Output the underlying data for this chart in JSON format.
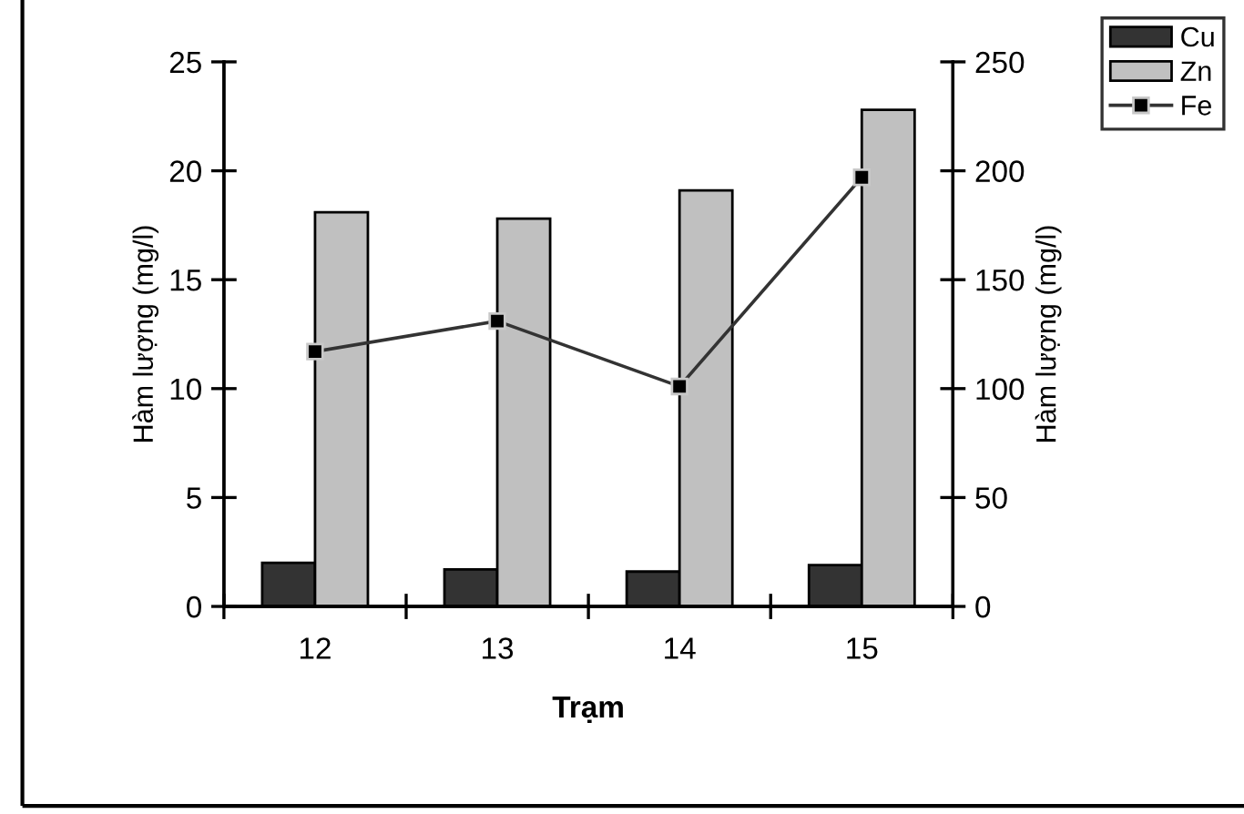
{
  "chart_data": {
    "type": "bar",
    "xlabel": "Trạm",
    "ylabel": "Hàm lượng (mg/l)",
    "y2label": "Hàm lượng (mg/l)",
    "categories": [
      "12",
      "13",
      "14",
      "15"
    ],
    "series": [
      {
        "name": "Cu",
        "color": "#333333",
        "values": [
          2.0,
          1.7,
          1.6,
          1.9
        ]
      },
      {
        "name": "Zn",
        "color": "#c0c0c0",
        "values": [
          18.1,
          17.8,
          19.1,
          22.8
        ]
      },
      {
        "name": "Fe",
        "type": "line",
        "axis": "y2",
        "color": "#333333",
        "marker": "square",
        "values": [
          117,
          131,
          101,
          197
        ]
      }
    ],
    "ylim": [
      0,
      25
    ],
    "yticks": [
      0,
      5,
      10,
      15,
      20,
      25
    ],
    "y2lim": [
      0,
      250
    ],
    "y2ticks": [
      0,
      50,
      100,
      150,
      200,
      250
    ],
    "grid": false,
    "legend": "top right"
  }
}
